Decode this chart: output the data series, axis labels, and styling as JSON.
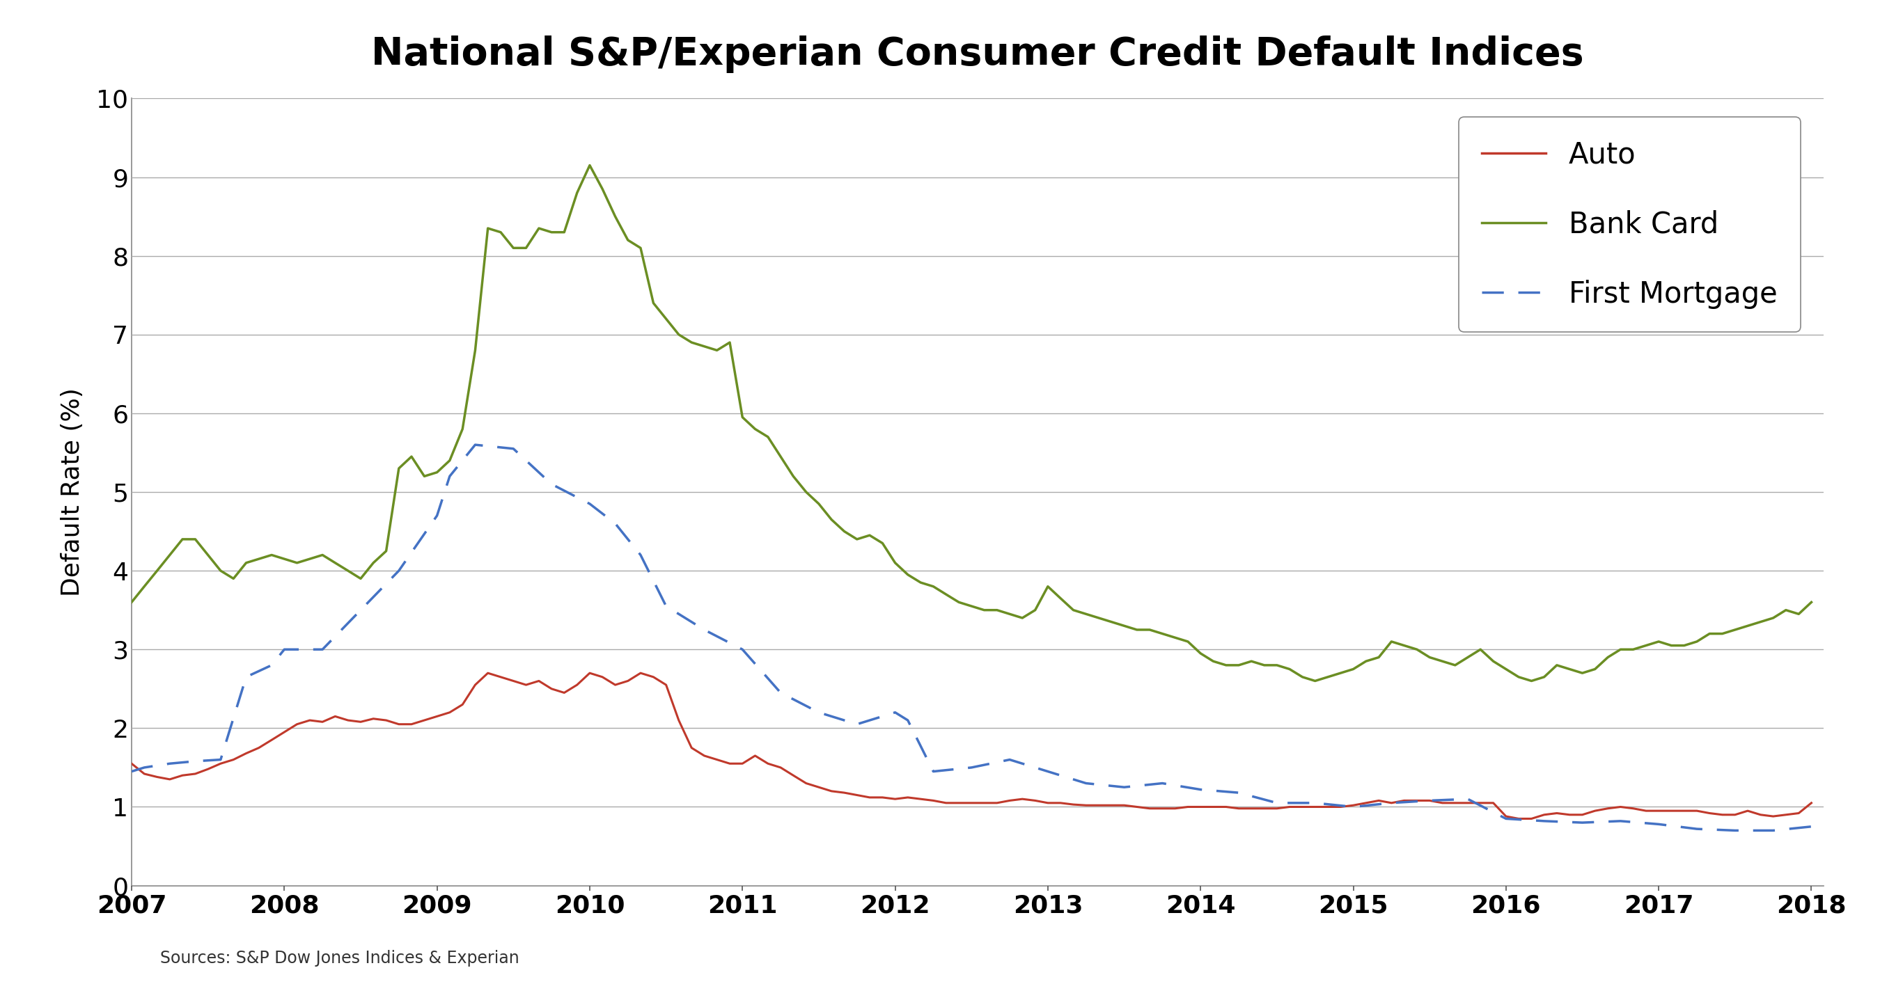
{
  "title": "National S&P/Experian Consumer Credit Default Indices",
  "ylabel": "Default Rate (%)",
  "source": "Sources: S&P Dow Jones Indices & Experian",
  "ylim": [
    0,
    10
  ],
  "yticks": [
    0,
    1,
    2,
    3,
    4,
    5,
    6,
    7,
    8,
    9,
    10
  ],
  "xlim": [
    2007.0,
    2018.08
  ],
  "xticks": [
    2007,
    2008,
    2009,
    2010,
    2011,
    2012,
    2013,
    2014,
    2015,
    2016,
    2017,
    2018
  ],
  "auto_color": "#c0392b",
  "bankcard_color": "#6b8e23",
  "mortgage_color": "#4472c4",
  "auto_x": [
    2007.0,
    2007.083,
    2007.167,
    2007.25,
    2007.333,
    2007.417,
    2007.5,
    2007.583,
    2007.667,
    2007.75,
    2007.833,
    2007.917,
    2008.0,
    2008.083,
    2008.167,
    2008.25,
    2008.333,
    2008.417,
    2008.5,
    2008.583,
    2008.667,
    2008.75,
    2008.833,
    2008.917,
    2009.0,
    2009.083,
    2009.167,
    2009.25,
    2009.333,
    2009.417,
    2009.5,
    2009.583,
    2009.667,
    2009.75,
    2009.833,
    2009.917,
    2010.0,
    2010.083,
    2010.167,
    2010.25,
    2010.333,
    2010.417,
    2010.5,
    2010.583,
    2010.667,
    2010.75,
    2010.833,
    2010.917,
    2011.0,
    2011.083,
    2011.167,
    2011.25,
    2011.333,
    2011.417,
    2011.5,
    2011.583,
    2011.667,
    2011.75,
    2011.833,
    2011.917,
    2012.0,
    2012.083,
    2012.167,
    2012.25,
    2012.333,
    2012.417,
    2012.5,
    2012.583,
    2012.667,
    2012.75,
    2012.833,
    2012.917,
    2013.0,
    2013.083,
    2013.167,
    2013.25,
    2013.333,
    2013.417,
    2013.5,
    2013.583,
    2013.667,
    2013.75,
    2013.833,
    2013.917,
    2014.0,
    2014.083,
    2014.167,
    2014.25,
    2014.333,
    2014.417,
    2014.5,
    2014.583,
    2014.667,
    2014.75,
    2014.833,
    2014.917,
    2015.0,
    2015.083,
    2015.167,
    2015.25,
    2015.333,
    2015.417,
    2015.5,
    2015.583,
    2015.667,
    2015.75,
    2015.833,
    2015.917,
    2016.0,
    2016.083,
    2016.167,
    2016.25,
    2016.333,
    2016.417,
    2016.5,
    2016.583,
    2016.667,
    2016.75,
    2016.833,
    2016.917,
    2017.0,
    2017.083,
    2017.167,
    2017.25,
    2017.333,
    2017.417,
    2017.5,
    2017.583,
    2017.667,
    2017.75,
    2017.833,
    2017.917,
    2018.0
  ],
  "auto_y": [
    1.55,
    1.42,
    1.38,
    1.35,
    1.4,
    1.42,
    1.48,
    1.55,
    1.6,
    1.68,
    1.75,
    1.85,
    1.95,
    2.05,
    2.1,
    2.08,
    2.15,
    2.1,
    2.08,
    2.12,
    2.1,
    2.05,
    2.05,
    2.1,
    2.15,
    2.2,
    2.3,
    2.55,
    2.7,
    2.65,
    2.6,
    2.55,
    2.6,
    2.5,
    2.45,
    2.55,
    2.7,
    2.65,
    2.55,
    2.6,
    2.7,
    2.65,
    2.55,
    2.1,
    1.75,
    1.65,
    1.6,
    1.55,
    1.55,
    1.65,
    1.55,
    1.5,
    1.4,
    1.3,
    1.25,
    1.2,
    1.18,
    1.15,
    1.12,
    1.12,
    1.1,
    1.12,
    1.1,
    1.08,
    1.05,
    1.05,
    1.05,
    1.05,
    1.05,
    1.08,
    1.1,
    1.08,
    1.05,
    1.05,
    1.03,
    1.02,
    1.02,
    1.02,
    1.02,
    1.0,
    0.98,
    0.98,
    0.98,
    1.0,
    1.0,
    1.0,
    1.0,
    0.98,
    0.98,
    0.98,
    0.98,
    1.0,
    1.0,
    1.0,
    1.0,
    1.0,
    1.02,
    1.05,
    1.08,
    1.05,
    1.08,
    1.08,
    1.08,
    1.05,
    1.05,
    1.05,
    1.05,
    1.05,
    0.88,
    0.85,
    0.85,
    0.9,
    0.92,
    0.9,
    0.9,
    0.95,
    0.98,
    1.0,
    0.98,
    0.95,
    0.95,
    0.95,
    0.95,
    0.95,
    0.92,
    0.9,
    0.9,
    0.95,
    0.9,
    0.88,
    0.9,
    0.92,
    1.05
  ],
  "bankcard_x": [
    2007.0,
    2007.083,
    2007.167,
    2007.25,
    2007.333,
    2007.417,
    2007.5,
    2007.583,
    2007.667,
    2007.75,
    2007.833,
    2007.917,
    2008.0,
    2008.083,
    2008.167,
    2008.25,
    2008.333,
    2008.417,
    2008.5,
    2008.583,
    2008.667,
    2008.75,
    2008.833,
    2008.917,
    2009.0,
    2009.083,
    2009.167,
    2009.25,
    2009.333,
    2009.417,
    2009.5,
    2009.583,
    2009.667,
    2009.75,
    2009.833,
    2009.917,
    2010.0,
    2010.083,
    2010.167,
    2010.25,
    2010.333,
    2010.417,
    2010.5,
    2010.583,
    2010.667,
    2010.75,
    2010.833,
    2010.917,
    2011.0,
    2011.083,
    2011.167,
    2011.25,
    2011.333,
    2011.417,
    2011.5,
    2011.583,
    2011.667,
    2011.75,
    2011.833,
    2011.917,
    2012.0,
    2012.083,
    2012.167,
    2012.25,
    2012.333,
    2012.417,
    2012.5,
    2012.583,
    2012.667,
    2012.75,
    2012.833,
    2012.917,
    2013.0,
    2013.083,
    2013.167,
    2013.25,
    2013.333,
    2013.417,
    2013.5,
    2013.583,
    2013.667,
    2013.75,
    2013.833,
    2013.917,
    2014.0,
    2014.083,
    2014.167,
    2014.25,
    2014.333,
    2014.417,
    2014.5,
    2014.583,
    2014.667,
    2014.75,
    2014.833,
    2014.917,
    2015.0,
    2015.083,
    2015.167,
    2015.25,
    2015.333,
    2015.417,
    2015.5,
    2015.583,
    2015.667,
    2015.75,
    2015.833,
    2015.917,
    2016.0,
    2016.083,
    2016.167,
    2016.25,
    2016.333,
    2016.417,
    2016.5,
    2016.583,
    2016.667,
    2016.75,
    2016.833,
    2016.917,
    2017.0,
    2017.083,
    2017.167,
    2017.25,
    2017.333,
    2017.417,
    2017.5,
    2017.583,
    2017.667,
    2017.75,
    2017.833,
    2017.917,
    2018.0
  ],
  "bankcard_y": [
    3.6,
    3.8,
    4.0,
    4.2,
    4.4,
    4.4,
    4.2,
    4.0,
    3.9,
    4.1,
    4.15,
    4.2,
    4.15,
    4.1,
    4.15,
    4.2,
    4.1,
    4.0,
    3.9,
    4.1,
    4.25,
    5.3,
    5.45,
    5.2,
    5.25,
    5.4,
    5.8,
    6.8,
    8.35,
    8.3,
    8.1,
    8.1,
    8.35,
    8.3,
    8.3,
    8.8,
    9.15,
    8.85,
    8.5,
    8.2,
    8.1,
    7.4,
    7.2,
    7.0,
    6.9,
    6.85,
    6.8,
    6.9,
    5.95,
    5.8,
    5.7,
    5.45,
    5.2,
    5.0,
    4.85,
    4.65,
    4.5,
    4.4,
    4.45,
    4.35,
    4.1,
    3.95,
    3.85,
    3.8,
    3.7,
    3.6,
    3.55,
    3.5,
    3.5,
    3.45,
    3.4,
    3.5,
    3.8,
    3.65,
    3.5,
    3.45,
    3.4,
    3.35,
    3.3,
    3.25,
    3.25,
    3.2,
    3.15,
    3.1,
    2.95,
    2.85,
    2.8,
    2.8,
    2.85,
    2.8,
    2.8,
    2.75,
    2.65,
    2.6,
    2.65,
    2.7,
    2.75,
    2.85,
    2.9,
    3.1,
    3.05,
    3.0,
    2.9,
    2.85,
    2.8,
    2.9,
    3.0,
    2.85,
    2.75,
    2.65,
    2.6,
    2.65,
    2.8,
    2.75,
    2.7,
    2.75,
    2.9,
    3.0,
    3.0,
    3.05,
    3.1,
    3.05,
    3.05,
    3.1,
    3.2,
    3.2,
    3.25,
    3.3,
    3.35,
    3.4,
    3.5,
    3.45,
    3.6
  ],
  "mortgage_x": [
    2007.0,
    2007.083,
    2007.25,
    2007.417,
    2007.583,
    2007.75,
    2007.917,
    2008.0,
    2008.25,
    2008.5,
    2008.75,
    2009.0,
    2009.083,
    2009.25,
    2009.5,
    2009.75,
    2010.0,
    2010.167,
    2010.333,
    2010.5,
    2010.75,
    2011.0,
    2011.25,
    2011.5,
    2011.75,
    2012.0,
    2012.083,
    2012.25,
    2012.5,
    2012.75,
    2013.0,
    2013.25,
    2013.5,
    2013.75,
    2014.0,
    2014.25,
    2014.5,
    2014.75,
    2015.0,
    2015.25,
    2015.5,
    2015.75,
    2016.0,
    2016.25,
    2016.5,
    2016.75,
    2017.0,
    2017.25,
    2017.5,
    2017.75,
    2018.0
  ],
  "mortgage_y": [
    1.45,
    1.5,
    1.55,
    1.58,
    1.6,
    2.65,
    2.8,
    3.0,
    3.0,
    3.5,
    4.0,
    4.7,
    5.2,
    5.6,
    5.55,
    5.1,
    4.85,
    4.6,
    4.2,
    3.55,
    3.25,
    3.0,
    2.45,
    2.2,
    2.05,
    2.2,
    2.1,
    1.45,
    1.5,
    1.6,
    1.45,
    1.3,
    1.25,
    1.3,
    1.22,
    1.18,
    1.05,
    1.05,
    1.0,
    1.05,
    1.08,
    1.1,
    0.85,
    0.82,
    0.8,
    0.82,
    0.78,
    0.72,
    0.7,
    0.7,
    0.75
  ],
  "legend_labels": [
    "Auto",
    "Bank Card",
    "First Mortgage"
  ],
  "background_color": "#ffffff",
  "grid_color": "#aaaaaa",
  "border_color": "#888888",
  "tick_color": "#555555",
  "text_color": "#000000"
}
